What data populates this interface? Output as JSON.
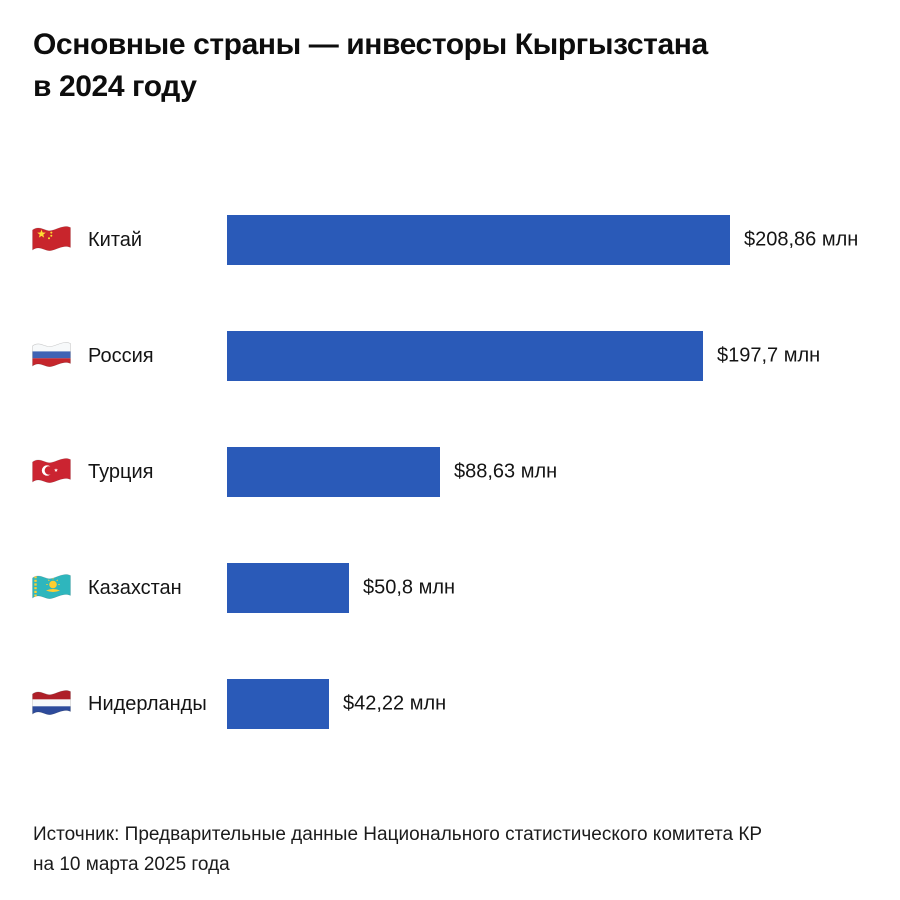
{
  "page": {
    "title_line1": "Основные страны — инвесторы Кыргызстана",
    "title_line2": "в 2024 году",
    "source_line1": "Источник: Предварительные данные Национального статистического комитета КР",
    "source_line2": "на 10 марта 2025 года"
  },
  "colors": {
    "bar": "#2a5ab8",
    "text": "#141414",
    "background": "#ffffff"
  },
  "chart_data": {
    "type": "bar",
    "orientation": "horizontal",
    "title": "Основные страны — инвесторы Кыргызстана в 2024 году",
    "unit": "млн долларов США",
    "xlim": [
      0,
      208.86
    ],
    "grid": false,
    "legend": false,
    "categories": [
      "Китай",
      "Россия",
      "Турция",
      "Казахстан",
      "Нидерланды"
    ],
    "values": [
      208.86,
      197.7,
      88.63,
      50.8,
      42.22
    ],
    "rows": [
      {
        "country": "Китай",
        "flag_icon": "china-flag-icon",
        "value": 208.86,
        "value_label": "$208,86 млн"
      },
      {
        "country": "Россия",
        "flag_icon": "russia-flag-icon",
        "value": 197.7,
        "value_label": "$197,7 млн"
      },
      {
        "country": "Турция",
        "flag_icon": "turkey-flag-icon",
        "value": 88.63,
        "value_label": "$88,63 млн"
      },
      {
        "country": "Казахстан",
        "flag_icon": "kazakhstan-flag-icon",
        "value": 50.8,
        "value_label": "$50,8 млн"
      },
      {
        "country": "Нидерланды",
        "flag_icon": "netherlands-flag-icon",
        "value": 42.22,
        "value_label": "$42,22 млн"
      }
    ],
    "source": "Источник: Предварительные данные Национального статистического комитета КР на 10 марта 2025 года"
  }
}
